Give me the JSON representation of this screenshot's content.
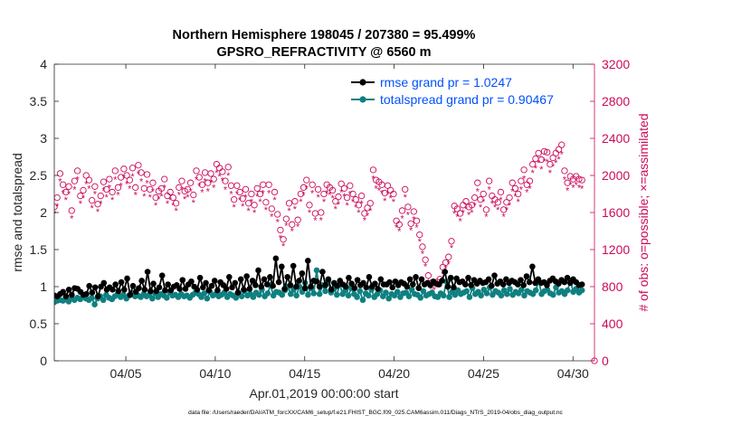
{
  "chart_data": {
    "type": "line",
    "title_line1": "Northern Hemisphere 198045 / 207380 = 95.499%",
    "title_line2": "GPSRO_REFRACTIVITY @ 6560 m",
    "xlabel": "Apr.01,2019 00:00:00 start",
    "ylabel_left": "rmse and totalspread",
    "ylabel_right": "# of obs: o=possible; ×=assimilated",
    "footnote": "data file: /Users/raeder/DAI/ATM_forcXX/CAM6_setup/f.e21.FHIST_BGC.f09_025.CAM6assim.011/Diags_NTrS_2019-04/obs_diag_output.nc",
    "xlim": [
      1.0,
      31.2
    ],
    "ylim_left": [
      0,
      4
    ],
    "ylim_right": [
      0,
      3200
    ],
    "x_ticks": [
      5,
      10,
      15,
      20,
      25,
      30
    ],
    "x_tick_labels": [
      "04/05",
      "04/10",
      "04/15",
      "04/20",
      "04/25",
      "04/30"
    ],
    "y_left_ticks": [
      0,
      0.5,
      1,
      1.5,
      2,
      2.5,
      3,
      3.5,
      4
    ],
    "y_left_tick_labels": [
      "0",
      "0.5",
      "1",
      "1.5",
      "2",
      "2.5",
      "3",
      "3.5",
      "4"
    ],
    "y_right_ticks": [
      0,
      400,
      800,
      1200,
      1600,
      2000,
      2400,
      2800,
      3200
    ],
    "y_right_tick_labels": [
      "0",
      "400",
      "800",
      "1200",
      "1600",
      "2000",
      "2400",
      "2800",
      "3200"
    ],
    "legend_position": "top-right",
    "colors": {
      "rmse": "#000000",
      "spread": "#0f8080",
      "obs": "#cc0a5a",
      "legend_text": "#0050ff"
    },
    "series": [
      {
        "name": "rmse grand pr = 1.0247",
        "axis": "left",
        "values": [
          0.88,
          0.87,
          0.9,
          0.93,
          0.87,
          0.96,
          0.89,
          0.98,
          0.97,
          0.93,
          0.89,
          0.9,
          1.01,
          0.92,
          0.99,
          0.87,
          1.0,
          1.05,
          0.96,
          0.99,
          0.96,
          1.03,
          0.94,
          1.06,
          0.96,
          1.11,
          0.89,
          1.01,
          0.93,
          0.98,
          1.08,
          0.96,
          1.2,
          0.94,
          1.04,
          0.94,
          0.99,
          1.15,
          0.95,
          1.03,
          0.95,
          1.0,
          1.02,
          0.97,
          1.09,
          0.97,
          1.03,
          1.07,
          1.0,
          0.96,
          1.12,
          0.99,
          1.05,
          0.95,
          1.01,
          1.08,
          0.95,
          1.06,
          1.02,
          0.97,
          1.13,
          0.99,
          1.05,
          0.92,
          1.1,
          0.96,
          1.14,
          0.97,
          1.08,
          1.02,
          1.22,
          1.0,
          1.1,
          1.03,
          1.13,
          1.01,
          1.38,
          1.06,
          1.27,
          0.97,
          1.13,
          1.02,
          1.28,
          1.0,
          1.08,
          1.18,
          0.98,
          1.35,
          1.0,
          1.08,
          1.07,
          1.0,
          1.2,
          1.02,
          1.1,
          0.96,
          1.05,
          1.01,
          1.08,
          1.03,
          1.0,
          1.12,
          1.04,
          0.98,
          1.09,
          1.02,
          1.05,
          0.99,
          1.13,
          1.0,
          1.04,
          0.97,
          1.1,
          1.03,
          1.03,
          1.06,
          0.99,
          1.07,
          1.02,
          1.06,
          1.04,
          1.0,
          1.1,
          1.03,
          1.13,
          0.98,
          1.1,
          1.03,
          1.05,
          1.02,
          1.07,
          1.04,
          1.03,
          1.08,
          1.2,
          1.0,
          1.12,
          0.99,
          1.11,
          1.06,
          1.07,
          1.03,
          1.12,
          1.02,
          1.09,
          1.04,
          1.08,
          1.05,
          1.06,
          1.1,
          1.01,
          1.15,
          1.04,
          1.07,
          1.03,
          1.1,
          1.05,
          1.08,
          1.06,
          1.03,
          1.09,
          1.02,
          1.14,
          1.06,
          1.27,
          1.05,
          1.1,
          1.05,
          1.06,
          1.02,
          1.08,
          1.11,
          1.07,
          1.04,
          1.09,
          1.06,
          1.12,
          1.05,
          1.1,
          1.06,
          1.02,
          1.03
        ]
      },
      {
        "name": "totalspread grand pr = 0.90467",
        "axis": "left",
        "values": [
          0.79,
          0.81,
          0.82,
          0.81,
          0.83,
          0.8,
          0.84,
          0.82,
          0.85,
          0.83,
          0.88,
          0.84,
          0.82,
          0.85,
          0.76,
          0.84,
          0.87,
          0.82,
          0.89,
          0.85,
          0.83,
          0.87,
          0.9,
          0.86,
          0.89,
          0.84,
          0.88,
          0.91,
          0.87,
          0.88,
          0.86,
          0.9,
          0.87,
          0.89,
          0.84,
          0.91,
          0.86,
          0.9,
          0.88,
          0.85,
          0.92,
          0.88,
          0.89,
          0.86,
          0.9,
          0.87,
          0.88,
          0.85,
          0.89,
          0.92,
          0.9,
          0.86,
          0.91,
          0.84,
          0.93,
          0.88,
          0.9,
          0.87,
          0.89,
          0.92,
          0.86,
          0.9,
          0.88,
          0.85,
          0.91,
          0.87,
          0.94,
          0.88,
          0.9,
          0.86,
          0.92,
          0.89,
          0.96,
          0.87,
          0.91,
          1.02,
          0.88,
          0.93,
          0.92,
          0.89,
          0.95,
          1.0,
          0.9,
          0.96,
          0.88,
          1.0,
          0.93,
          1.05,
          0.89,
          0.98,
          0.91,
          1.22,
          0.9,
          1.02,
          0.94,
          1.07,
          0.92,
          0.97,
          0.89,
          1.03,
          0.9,
          0.95,
          0.88,
          0.98,
          0.9,
          0.86,
          0.94,
          0.82,
          0.91,
          0.88,
          0.96,
          0.86,
          0.9,
          0.95,
          0.87,
          0.92,
          0.84,
          0.9,
          0.88,
          0.93,
          0.86,
          0.91,
          0.92,
          0.87,
          0.96,
          0.9,
          0.89,
          0.85,
          0.94,
          0.88,
          0.9,
          0.92,
          0.87,
          0.86,
          0.91,
          0.88,
          1.07,
          0.86,
          0.93,
          0.89,
          0.95,
          0.9,
          0.92,
          0.94,
          0.86,
          0.98,
          0.9,
          0.93,
          0.88,
          0.96,
          0.91,
          0.99,
          0.89,
          0.94,
          0.92,
          0.88,
          0.95,
          0.9,
          0.97,
          0.89,
          0.93,
          0.91,
          0.96,
          0.88,
          0.94,
          0.92,
          0.9,
          0.95,
          1.08,
          0.9,
          0.94,
          0.96,
          0.91,
          0.89,
          0.99,
          0.92,
          0.94,
          0.9,
          0.95,
          1.08,
          0.93,
          0.97,
          0.92,
          0.95
        ]
      },
      {
        "name": "observations possible",
        "axis": "right",
        "marker": "o",
        "values": [
          1660,
          1760,
          2020,
          1900,
          1820,
          1880,
          1620,
          1940,
          2050,
          1780,
          1840,
          2000,
          1950,
          1730,
          1880,
          1690,
          1780,
          1930,
          1850,
          1960,
          1820,
          2050,
          1870,
          1980,
          2070,
          2000,
          1950,
          2080,
          1870,
          2110,
          2030,
          1860,
          2010,
          1850,
          1920,
          1760,
          1830,
          1860,
          1960,
          1780,
          1820,
          1760,
          1700,
          1870,
          1940,
          1830,
          1850,
          1920,
          1790,
          2050,
          1980,
          1900,
          2030,
          1920,
          2020,
          1960,
          2120,
          2080,
          2040,
          1940,
          2090,
          1890,
          1740,
          1890,
          1820,
          1750,
          1850,
          1700,
          1800,
          1680,
          1860,
          1800,
          1900,
          1710,
          1900,
          1640,
          1820,
          1580,
          1410,
          1310,
          1530,
          1700,
          1470,
          1720,
          1520,
          1800,
          1870,
          1950,
          1680,
          1900,
          1590,
          1850,
          1600,
          1800,
          1900,
          1870,
          1840,
          1720,
          1770,
          1910,
          1860,
          1760,
          1890,
          1800,
          1740,
          1680,
          1780,
          1590,
          1650,
          1700,
          2060,
          1950,
          1930,
          1900,
          1810,
          1890,
          1840,
          1800,
          1510,
          1470,
          1620,
          1850,
          1660,
          1480,
          1610,
          1510,
          1360,
          1230,
          1090,
          920,
          840,
          840,
          850,
          880,
          1010,
          1060,
          1120,
          1290,
          1670,
          1640,
          1590,
          1680,
          1720,
          1660,
          1680,
          1760,
          1920,
          1740,
          1800,
          1630,
          1940,
          1780,
          1740,
          1710,
          1820,
          1630,
          1710,
          1760,
          1920,
          1860,
          1800,
          1940,
          2060,
          1900,
          1940,
          2120,
          2180,
          2240,
          2170,
          2260,
          2250,
          2120,
          2190,
          2240,
          2280,
          2330,
          2050,
          1920,
          1990,
          1960,
          1990,
          1960,
          1950
        ]
      },
      {
        "name": "observations assimilated",
        "axis": "right",
        "marker": "*",
        "values": [
          1590,
          1670,
          1940,
          1810,
          1740,
          1800,
          1540,
          1850,
          1960,
          1700,
          1760,
          1910,
          1860,
          1650,
          1800,
          1610,
          1700,
          1840,
          1770,
          1870,
          1740,
          1960,
          1790,
          1890,
          1980,
          1910,
          1860,
          1990,
          1790,
          2020,
          1940,
          1780,
          1920,
          1770,
          1830,
          1680,
          1750,
          1780,
          1870,
          1700,
          1740,
          1680,
          1620,
          1790,
          1850,
          1750,
          1770,
          1830,
          1710,
          1960,
          1890,
          1820,
          1940,
          1830,
          1930,
          1870,
          2030,
          1990,
          1950,
          1850,
          2000,
          1800,
          1660,
          1800,
          1740,
          1670,
          1770,
          1620,
          1720,
          1600,
          1780,
          1720,
          1810,
          1630,
          1810,
          1560,
          1740,
          1500,
          1330,
          1240,
          1460,
          1620,
          1400,
          1640,
          1450,
          1720,
          1790,
          1860,
          1600,
          1810,
          1520,
          1770,
          1520,
          1720,
          1810,
          1790,
          1760,
          1640,
          1690,
          1820,
          1780,
          1680,
          1800,
          1720,
          1660,
          1600,
          1700,
          1520,
          1570,
          1620,
          1970,
          1860,
          1840,
          1810,
          1730,
          1800,
          1760,
          1720,
          1440,
          1400,
          1540,
          1770,
          1580,
          1410,
          1530,
          1440,
          1290,
          1160,
          1020,
          850,
          780,
          770,
          790,
          820,
          940,
          1000,
          1050,
          1220,
          1590,
          1560,
          1510,
          1600,
          1640,
          1580,
          1600,
          1680,
          1830,
          1660,
          1720,
          1560,
          1850,
          1700,
          1660,
          1630,
          1740,
          1560,
          1630,
          1680,
          1830,
          1780,
          1720,
          1850,
          1970,
          1820,
          1860,
          2030,
          2080,
          2140,
          2070,
          2160,
          2150,
          2030,
          2100,
          2140,
          2180,
          2230,
          1960,
          1840,
          1900,
          1870,
          1900,
          1870,
          1860
        ]
      }
    ]
  }
}
